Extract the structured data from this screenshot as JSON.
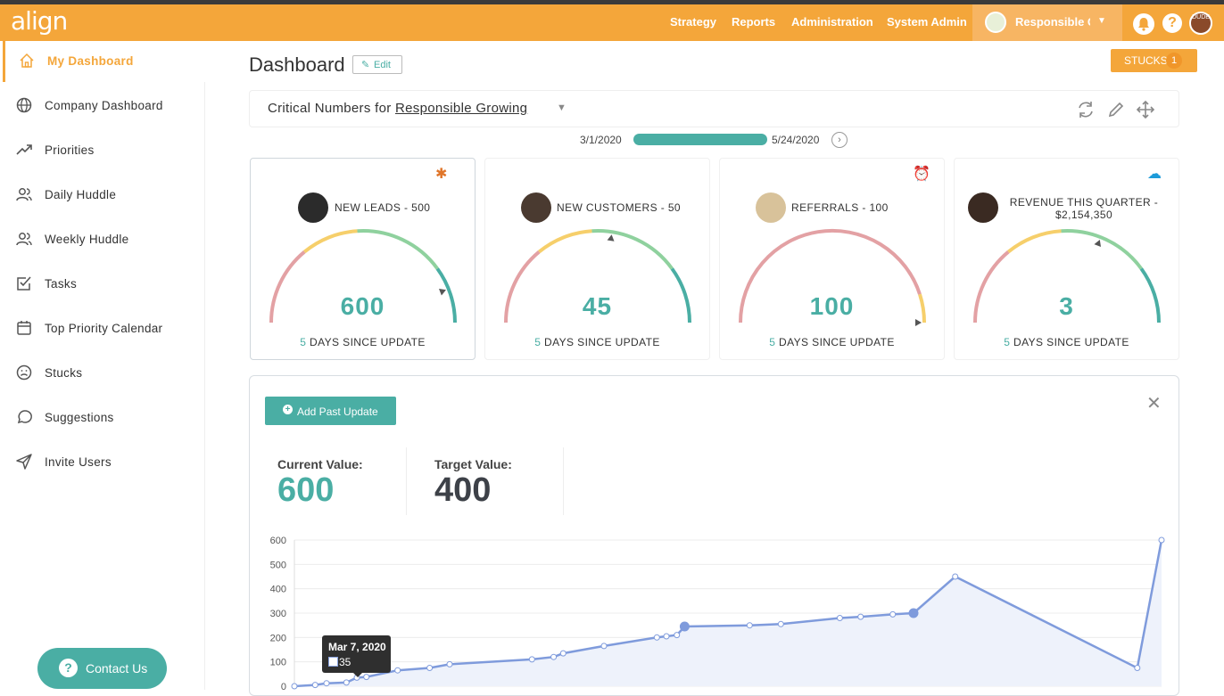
{
  "header": {
    "logo": "align",
    "nav": [
      "Strategy",
      "Reports",
      "Administration",
      "System Admin"
    ],
    "org_name": "Responsible Growing",
    "user_initials": "DUDE"
  },
  "sidebar": {
    "items": [
      {
        "label": "My Dashboard",
        "icon": "home-icon",
        "active": true
      },
      {
        "label": "Company Dashboard",
        "icon": "globe-icon"
      },
      {
        "label": "Priorities",
        "icon": "trending-up-icon"
      },
      {
        "label": "Daily Huddle",
        "icon": "users-icon"
      },
      {
        "label": "Weekly Huddle",
        "icon": "users-icon"
      },
      {
        "label": "Tasks",
        "icon": "checkbox-icon"
      },
      {
        "label": "Top Priority Calendar",
        "icon": "calendar-icon"
      },
      {
        "label": "Stucks",
        "icon": "frown-icon"
      },
      {
        "label": "Suggestions",
        "icon": "message-icon"
      },
      {
        "label": "Invite Users",
        "icon": "send-icon"
      }
    ],
    "contact_label": "Contact Us"
  },
  "main": {
    "title": "Dashboard",
    "edit_label": "Edit",
    "stucks_label": "STUCKS",
    "stucks_count": "1",
    "critical_prefix": "Critical Numbers for",
    "critical_org": "Responsible Growing",
    "date_start": "3/1/2020",
    "date_end": "5/24/2020"
  },
  "cards": [
    {
      "title": "NEW LEADS - 500",
      "value": "600",
      "since_n": "5",
      "since_label": "DAYS SINCE UPDATE",
      "needle_fraction": 0.88,
      "badge": "asterisk-icon",
      "badge_color": "#e0762b"
    },
    {
      "title": "NEW CUSTOMERS - 50",
      "value": "45",
      "since_n": "5",
      "since_label": "DAYS SINCE UPDATE",
      "needle_fraction": 0.55,
      "badge": "",
      "badge_color": ""
    },
    {
      "title": "REFERRALS - 100",
      "value": "100",
      "since_n": "5",
      "since_label": "DAYS SINCE UPDATE",
      "needle_fraction": 1.0,
      "badge": "alarm-clock-icon",
      "badge_color": "#333333"
    },
    {
      "title": "REVENUE THIS QUARTER - $2,154,350",
      "value": "3",
      "since_n": "5",
      "since_label": "DAYS SINCE UPDATE",
      "needle_fraction": 0.62,
      "badge": "salesforce-cloud-icon",
      "badge_color": "#1d9bd9"
    }
  ],
  "detail": {
    "add_past_label": "Add Past Update",
    "current_label": "Current Value:",
    "current_value": "600",
    "target_label": "Target Value:",
    "target_value": "400"
  },
  "tooltip": {
    "date": "Mar 7, 2020",
    "value": "35"
  },
  "colors": {
    "brand_orange": "#f4a63a",
    "teal": "#4aaea4",
    "gauge_red": "#e3a1a4",
    "gauge_yellow": "#f6cf6b",
    "gauge_green": "#8fd19e",
    "line_blue": "#7f9bdc"
  },
  "chart_data": {
    "type": "line",
    "yticks": [
      "600",
      "500",
      "400",
      "300",
      "200",
      "100",
      "0"
    ],
    "ylim": [
      0,
      600
    ],
    "series": [
      {
        "values": [
          0,
          5,
          12,
          15,
          35,
          38,
          65,
          75,
          90,
          110,
          120,
          135,
          165,
          200,
          205,
          210,
          245,
          250,
          255,
          280,
          285,
          295,
          300,
          450,
          75,
          600
        ]
      }
    ],
    "x_index": [
      0,
      1,
      2,
      3,
      4,
      5,
      6,
      7,
      8,
      9,
      10,
      11,
      12,
      13,
      14,
      15,
      16,
      17,
      18,
      19,
      20,
      21,
      22,
      23,
      24,
      25
    ]
  }
}
